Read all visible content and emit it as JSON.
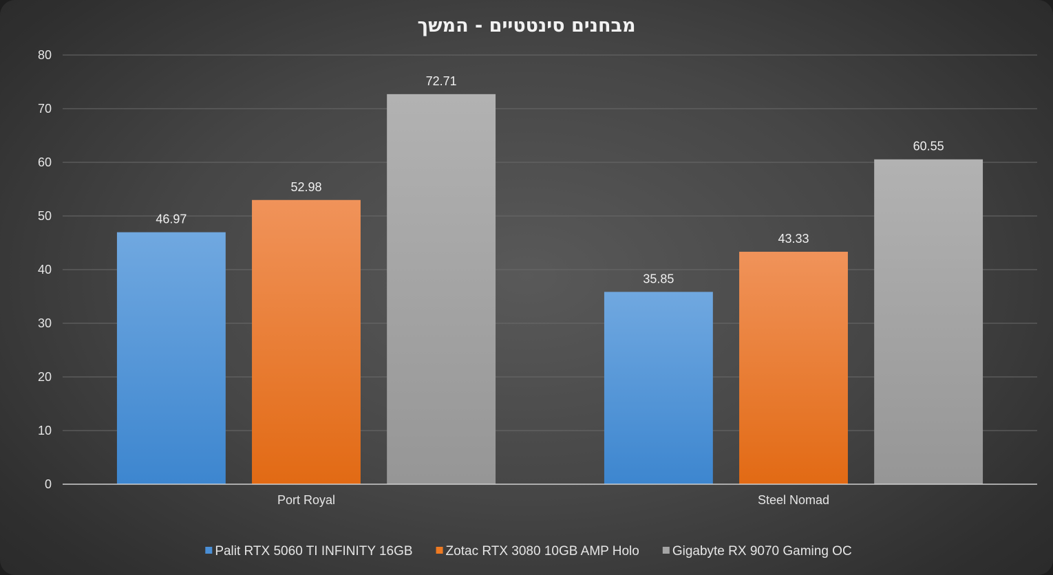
{
  "chart_data": {
    "type": "bar",
    "title": "מבחנים סינטטיים - המשך",
    "categories": [
      "Port Royal",
      "Steel Nomad"
    ],
    "series": [
      {
        "name": "Palit RTX 5060 TI INFINITY 16GB",
        "values": [
          46.97,
          35.85
        ],
        "color": "#4a8fd6",
        "color_light": "#70a8e0",
        "color_dark": "#3d86cf"
      },
      {
        "name": "Zotac RTX 3080 10GB AMP Holo",
        "values": [
          52.98,
          43.33
        ],
        "color": "#ee7a22",
        "color_light": "#f0935a",
        "color_dark": "#e26a14"
      },
      {
        "name": "Gigabyte RX 9070 Gaming OC",
        "values": [
          72.71,
          60.55
        ],
        "color": "#a5a5a5",
        "color_light": "#b2b2b2",
        "color_dark": "#969696"
      }
    ],
    "ylim": [
      0,
      80
    ],
    "yticks": [
      "0",
      "10",
      "20",
      "30",
      "40",
      "50",
      "60",
      "70",
      "80"
    ],
    "grid": true,
    "legend_position": "bottom",
    "xlabel": "",
    "ylabel": ""
  }
}
